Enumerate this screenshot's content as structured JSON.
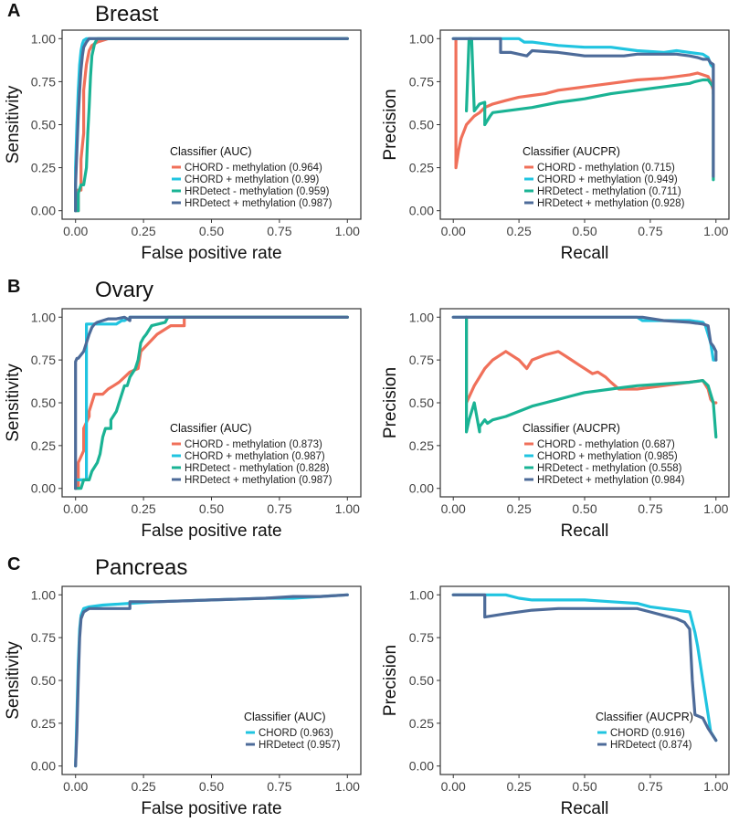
{
  "figure": {
    "colors": {
      "chord_minus": "#f0705a",
      "chord_plus": "#20c4e0",
      "hrd_minus": "#1ab394",
      "hrd_plus": "#4d6b99"
    }
  },
  "chart_data": [
    {
      "type": "line",
      "panel": "A",
      "tissue": "Breast",
      "xlabel": "False positive rate",
      "ylabel": "Sensitivity",
      "xlim": [
        0,
        1
      ],
      "ylim": [
        0,
        1
      ],
      "xticks": [
        "0.00",
        "0.25",
        "0.50",
        "0.75",
        "1.00"
      ],
      "yticks": [
        "0.00",
        "0.25",
        "0.50",
        "0.75",
        "1.00"
      ],
      "legend_title": "Classifier (AUC)",
      "series": [
        {
          "name": "CHORD - methylation",
          "value": "(0.964)",
          "color_key": "chord_minus",
          "x": [
            0.0,
            0.01,
            0.01,
            0.02,
            0.02,
            0.03,
            0.03,
            0.04,
            0.05,
            0.06,
            0.07,
            0.08,
            0.1,
            0.12,
            1.0
          ],
          "y": [
            0.0,
            0.0,
            0.12,
            0.12,
            0.3,
            0.45,
            0.7,
            0.85,
            0.93,
            0.96,
            0.97,
            0.98,
            0.99,
            1.0,
            1.0
          ]
        },
        {
          "name": "CHORD + methylation",
          "value": "(0.99)",
          "color_key": "chord_plus",
          "x": [
            0.0,
            0.0,
            0.005,
            0.01,
            0.015,
            0.02,
            0.025,
            0.03,
            0.04,
            1.0
          ],
          "y": [
            0.0,
            0.25,
            0.5,
            0.7,
            0.85,
            0.93,
            0.97,
            0.99,
            1.0,
            1.0
          ]
        },
        {
          "name": "HRDetect - methylation",
          "value": "(0.959)",
          "color_key": "hrd_minus",
          "x": [
            0.0,
            0.01,
            0.01,
            0.02,
            0.03,
            0.04,
            0.045,
            0.05,
            0.055,
            0.06,
            0.07,
            0.08,
            1.0
          ],
          "y": [
            0.0,
            0.0,
            0.1,
            0.15,
            0.15,
            0.25,
            0.45,
            0.6,
            0.78,
            0.9,
            0.97,
            1.0,
            1.0
          ]
        },
        {
          "name": "HRDetect + methylation",
          "value": "(0.987)",
          "color_key": "hrd_plus",
          "x": [
            0.0,
            0.0,
            0.005,
            0.01,
            0.015,
            0.02,
            0.025,
            0.03,
            0.04,
            0.05,
            1.0
          ],
          "y": [
            0.0,
            0.15,
            0.35,
            0.55,
            0.7,
            0.82,
            0.9,
            0.95,
            0.98,
            1.0,
            1.0
          ]
        }
      ]
    },
    {
      "type": "line",
      "panel": "A-PR",
      "tissue": "Breast",
      "xlabel": "Recall",
      "ylabel": "Precision",
      "xlim": [
        0,
        1
      ],
      "ylim": [
        0,
        1
      ],
      "xticks": [
        "0.00",
        "0.25",
        "0.50",
        "0.75",
        "1.00"
      ],
      "yticks": [
        "0.00",
        "0.25",
        "0.50",
        "0.75",
        "1.00"
      ],
      "legend_title": "Classifier (AUCPR)",
      "series": [
        {
          "name": "CHORD - methylation",
          "value": "(0.715)",
          "color_key": "chord_minus",
          "x": [
            0.01,
            0.01,
            0.02,
            0.03,
            0.05,
            0.08,
            0.1,
            0.12,
            0.15,
            0.2,
            0.25,
            0.3,
            0.35,
            0.4,
            0.5,
            0.6,
            0.7,
            0.8,
            0.85,
            0.9,
            0.93,
            0.95,
            0.97,
            0.98,
            0.99,
            0.99
          ],
          "y": [
            1.0,
            0.25,
            0.35,
            0.42,
            0.5,
            0.55,
            0.57,
            0.6,
            0.62,
            0.64,
            0.66,
            0.67,
            0.68,
            0.7,
            0.72,
            0.74,
            0.76,
            0.77,
            0.78,
            0.79,
            0.8,
            0.79,
            0.78,
            0.75,
            0.7,
            0.68
          ]
        },
        {
          "name": "CHORD + methylation",
          "value": "(0.949)",
          "color_key": "chord_plus",
          "x": [
            0.0,
            0.25,
            0.27,
            0.3,
            0.4,
            0.5,
            0.6,
            0.7,
            0.8,
            0.85,
            0.9,
            0.95,
            0.97,
            0.98,
            0.99,
            0.99
          ],
          "y": [
            1.0,
            1.0,
            0.98,
            0.98,
            0.96,
            0.95,
            0.95,
            0.93,
            0.92,
            0.93,
            0.92,
            0.91,
            0.89,
            0.85,
            0.83,
            0.75
          ]
        },
        {
          "name": "HRDetect - methylation",
          "value": "(0.711)",
          "color_key": "hrd_minus",
          "x": [
            0.05,
            0.06,
            0.07,
            0.08,
            0.09,
            0.1,
            0.12,
            0.12,
            0.14,
            0.15,
            0.2,
            0.3,
            0.4,
            0.5,
            0.6,
            0.7,
            0.8,
            0.85,
            0.9,
            0.92,
            0.95,
            0.97,
            0.98,
            0.99,
            0.99,
            0.99
          ],
          "y": [
            0.58,
            1.0,
            1.0,
            0.58,
            0.6,
            0.62,
            0.63,
            0.5,
            0.55,
            0.57,
            0.58,
            0.6,
            0.63,
            0.65,
            0.68,
            0.7,
            0.72,
            0.73,
            0.74,
            0.75,
            0.76,
            0.76,
            0.74,
            0.72,
            0.3,
            0.18
          ]
        },
        {
          "name": "HRDetect + methylation",
          "value": "(0.928)",
          "color_key": "hrd_plus",
          "x": [
            0.0,
            0.18,
            0.18,
            0.22,
            0.28,
            0.3,
            0.4,
            0.5,
            0.6,
            0.65,
            0.7,
            0.8,
            0.85,
            0.9,
            0.93,
            0.95,
            0.97,
            0.98,
            0.99,
            0.99
          ],
          "y": [
            1.0,
            1.0,
            0.92,
            0.92,
            0.9,
            0.93,
            0.92,
            0.9,
            0.9,
            0.9,
            0.91,
            0.91,
            0.91,
            0.9,
            0.89,
            0.88,
            0.88,
            0.86,
            0.85,
            0.2
          ]
        }
      ]
    },
    {
      "type": "line",
      "panel": "B",
      "tissue": "Ovary",
      "xlabel": "False positive rate",
      "ylabel": "Sensitivity",
      "xlim": [
        0,
        1
      ],
      "ylim": [
        0,
        1
      ],
      "xticks": [
        "0.00",
        "0.25",
        "0.50",
        "0.75",
        "1.00"
      ],
      "yticks": [
        "0.00",
        "0.25",
        "0.50",
        "0.75",
        "1.00"
      ],
      "legend_title": "Classifier (AUC)",
      "series": [
        {
          "name": "CHORD - methylation",
          "value": "(0.873)",
          "color_key": "chord_minus",
          "x": [
            0.0,
            0.01,
            0.01,
            0.03,
            0.03,
            0.05,
            0.05,
            0.07,
            0.1,
            0.12,
            0.14,
            0.16,
            0.18,
            0.2,
            0.23,
            0.24,
            0.3,
            0.35,
            0.4,
            0.4,
            1.0
          ],
          "y": [
            0.0,
            0.0,
            0.15,
            0.22,
            0.35,
            0.42,
            0.45,
            0.55,
            0.55,
            0.58,
            0.6,
            0.62,
            0.65,
            0.68,
            0.7,
            0.8,
            0.9,
            0.95,
            0.95,
            1.0,
            1.0
          ]
        },
        {
          "name": "CHORD + methylation",
          "value": "(0.987)",
          "color_key": "chord_plus",
          "x": [
            0.0,
            0.0,
            0.02,
            0.04,
            0.04,
            0.15,
            0.17,
            0.18,
            0.19,
            0.2,
            0.2,
            1.0
          ],
          "y": [
            0.0,
            0.05,
            0.05,
            0.05,
            0.96,
            0.96,
            0.98,
            0.98,
            0.99,
            0.99,
            1.0,
            1.0
          ]
        },
        {
          "name": "HRDetect - methylation",
          "value": "(0.828)",
          "color_key": "hrd_minus",
          "x": [
            0.0,
            0.02,
            0.03,
            0.05,
            0.06,
            0.08,
            0.09,
            0.1,
            0.11,
            0.13,
            0.13,
            0.15,
            0.16,
            0.18,
            0.19,
            0.2,
            0.22,
            0.23,
            0.24,
            0.25,
            0.26,
            0.28,
            0.33,
            0.34,
            1.0
          ],
          "y": [
            0.0,
            0.0,
            0.05,
            0.05,
            0.1,
            0.15,
            0.2,
            0.3,
            0.35,
            0.35,
            0.4,
            0.45,
            0.5,
            0.6,
            0.6,
            0.65,
            0.7,
            0.75,
            0.85,
            0.88,
            0.9,
            0.95,
            0.97,
            1.0,
            1.0
          ]
        },
        {
          "name": "HRDetect + methylation",
          "value": "(0.987)",
          "color_key": "hrd_plus",
          "x": [
            0.0,
            0.0,
            0.005,
            0.01,
            0.02,
            0.03,
            0.04,
            0.05,
            0.06,
            0.07,
            0.08,
            0.1,
            0.12,
            0.15,
            0.18,
            0.2,
            0.2,
            1.0
          ],
          "y": [
            0.0,
            0.74,
            0.76,
            0.76,
            0.78,
            0.8,
            0.85,
            0.9,
            0.94,
            0.96,
            0.97,
            0.98,
            0.99,
            0.99,
            1.0,
            0.98,
            1.0,
            1.0
          ]
        }
      ]
    },
    {
      "type": "line",
      "panel": "B-PR",
      "tissue": "Ovary",
      "xlabel": "Recall",
      "ylabel": "Precision",
      "xlim": [
        0,
        1
      ],
      "ylim": [
        0,
        1
      ],
      "xticks": [
        "0.00",
        "0.25",
        "0.50",
        "0.75",
        "1.00"
      ],
      "yticks": [
        "0.00",
        "0.25",
        "0.50",
        "0.75",
        "1.00"
      ],
      "legend_title": "Classifier (AUCPR)",
      "series": [
        {
          "name": "CHORD - methylation",
          "value": "(0.687)",
          "color_key": "chord_minus",
          "x": [
            0.05,
            0.05,
            0.08,
            0.1,
            0.12,
            0.15,
            0.2,
            0.25,
            0.28,
            0.3,
            0.35,
            0.4,
            0.43,
            0.45,
            0.48,
            0.5,
            0.53,
            0.55,
            0.58,
            0.6,
            0.63,
            0.7,
            0.8,
            0.9,
            0.95,
            0.97,
            0.98,
            0.99,
            1.0
          ],
          "y": [
            1.0,
            0.5,
            0.6,
            0.65,
            0.7,
            0.75,
            0.8,
            0.75,
            0.7,
            0.75,
            0.78,
            0.8,
            0.77,
            0.75,
            0.72,
            0.7,
            0.67,
            0.68,
            0.65,
            0.62,
            0.58,
            0.58,
            0.6,
            0.62,
            0.63,
            0.58,
            0.52,
            0.5,
            0.5
          ]
        },
        {
          "name": "CHORD + methylation",
          "value": "(0.985)",
          "color_key": "chord_plus",
          "x": [
            0.0,
            0.7,
            0.72,
            0.8,
            0.9,
            0.95,
            0.96,
            0.97,
            0.98,
            0.99,
            1.0
          ],
          "y": [
            1.0,
            1.0,
            0.98,
            0.98,
            0.98,
            0.97,
            0.95,
            0.9,
            0.85,
            0.75,
            0.75
          ]
        },
        {
          "name": "HRDetect - methylation",
          "value": "(0.558)",
          "color_key": "hrd_minus",
          "x": [
            0.05,
            0.05,
            0.06,
            0.08,
            0.1,
            0.1,
            0.12,
            0.13,
            0.15,
            0.2,
            0.25,
            0.3,
            0.35,
            0.4,
            0.45,
            0.5,
            0.55,
            0.6,
            0.65,
            0.7,
            0.8,
            0.9,
            0.95,
            0.97,
            0.99,
            1.0
          ],
          "y": [
            1.0,
            0.33,
            0.4,
            0.5,
            0.33,
            0.36,
            0.4,
            0.38,
            0.4,
            0.42,
            0.45,
            0.48,
            0.5,
            0.52,
            0.54,
            0.56,
            0.57,
            0.58,
            0.59,
            0.6,
            0.61,
            0.62,
            0.63,
            0.6,
            0.5,
            0.3
          ]
        },
        {
          "name": "HRDetect + methylation",
          "value": "(0.984)",
          "color_key": "hrd_plus",
          "x": [
            0.0,
            0.72,
            0.8,
            0.9,
            0.95,
            0.97,
            0.98,
            0.99,
            1.0,
            1.0
          ],
          "y": [
            1.0,
            1.0,
            0.98,
            0.97,
            0.96,
            0.95,
            0.85,
            0.83,
            0.8,
            0.75
          ]
        }
      ]
    },
    {
      "type": "line",
      "panel": "C",
      "tissue": "Pancreas",
      "xlabel": "False positive rate",
      "ylabel": "Sensitivity",
      "xlim": [
        0,
        1
      ],
      "ylim": [
        0,
        1
      ],
      "xticks": [
        "0.00",
        "0.25",
        "0.50",
        "0.75",
        "1.00"
      ],
      "yticks": [
        "0.00",
        "0.25",
        "0.50",
        "0.75",
        "1.00"
      ],
      "legend_title": "Classifier (AUC)",
      "series": [
        {
          "name": "CHORD",
          "value": "(0.963)",
          "color_key": "chord_plus",
          "x": [
            0.0,
            0.005,
            0.01,
            0.015,
            0.02,
            0.03,
            0.05,
            0.1,
            0.2,
            0.3,
            0.5,
            0.7,
            0.8,
            0.9,
            1.0
          ],
          "y": [
            0.0,
            0.3,
            0.6,
            0.8,
            0.88,
            0.92,
            0.93,
            0.94,
            0.95,
            0.96,
            0.97,
            0.98,
            0.98,
            0.99,
            1.0
          ]
        },
        {
          "name": "HRDetect",
          "value": "(0.957)",
          "color_key": "hrd_plus",
          "x": [
            0.0,
            0.005,
            0.01,
            0.015,
            0.02,
            0.03,
            0.05,
            0.1,
            0.15,
            0.2,
            0.2,
            0.3,
            0.5,
            0.7,
            0.8,
            0.9,
            1.0
          ],
          "y": [
            0.0,
            0.2,
            0.5,
            0.75,
            0.86,
            0.9,
            0.92,
            0.92,
            0.92,
            0.92,
            0.96,
            0.96,
            0.97,
            0.98,
            0.99,
            0.99,
            1.0
          ]
        }
      ]
    },
    {
      "type": "line",
      "panel": "C-PR",
      "tissue": "Pancreas",
      "xlabel": "Recall",
      "ylabel": "Precision",
      "xlim": [
        0,
        1
      ],
      "ylim": [
        0,
        1
      ],
      "xticks": [
        "0.00",
        "0.25",
        "0.50",
        "0.75",
        "1.00"
      ],
      "yticks": [
        "0.00",
        "0.25",
        "0.50",
        "0.75",
        "1.00"
      ],
      "legend_title": "Classifier (AUCPR)",
      "series": [
        {
          "name": "CHORD",
          "value": "(0.916)",
          "color_key": "chord_plus",
          "x": [
            0.0,
            0.2,
            0.25,
            0.3,
            0.4,
            0.5,
            0.6,
            0.7,
            0.75,
            0.8,
            0.85,
            0.9,
            0.92,
            0.93,
            0.95,
            0.97,
            0.98,
            1.0
          ],
          "y": [
            1.0,
            1.0,
            0.98,
            0.97,
            0.97,
            0.97,
            0.96,
            0.95,
            0.93,
            0.92,
            0.91,
            0.9,
            0.78,
            0.7,
            0.5,
            0.3,
            0.2,
            0.15
          ]
        },
        {
          "name": "HRDetect",
          "value": "(0.874)",
          "color_key": "hrd_plus",
          "x": [
            0.0,
            0.12,
            0.12,
            0.2,
            0.3,
            0.4,
            0.5,
            0.6,
            0.7,
            0.75,
            0.8,
            0.85,
            0.88,
            0.9,
            0.91,
            0.92,
            0.95,
            0.97,
            1.0
          ],
          "y": [
            1.0,
            1.0,
            0.87,
            0.89,
            0.91,
            0.92,
            0.92,
            0.92,
            0.92,
            0.9,
            0.88,
            0.86,
            0.84,
            0.8,
            0.5,
            0.3,
            0.28,
            0.22,
            0.15
          ]
        }
      ]
    }
  ],
  "panel_labels": [
    "A",
    "B",
    "C"
  ],
  "tissue_titles": [
    "Breast",
    "Ovary",
    "Pancreas"
  ]
}
